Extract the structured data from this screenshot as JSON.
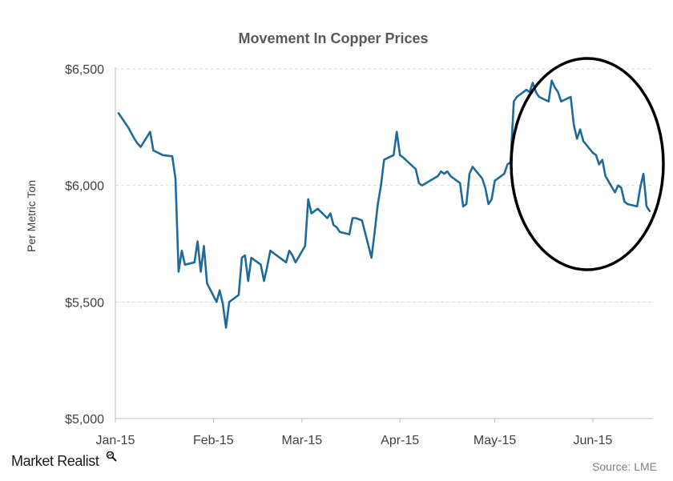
{
  "chart_data": {
    "type": "line",
    "title": "Movement In Copper Prices",
    "xlabel": "",
    "ylabel": "Per Metric Ton",
    "ylim": [
      5000,
      6500
    ],
    "ytick_values": [
      5000,
      5500,
      6000,
      6500
    ],
    "ytick_labels": [
      "$5,000",
      "$5,500",
      "$6,000",
      "$6,500"
    ],
    "xtick_labels": [
      "Jan-15",
      "Feb-15",
      "Mar-15",
      "Apr-15",
      "May-15",
      "Jun-15"
    ],
    "xtick_dates": [
      "2015-01-01",
      "2015-02-01",
      "2015-03-01",
      "2015-04-01",
      "2015-05-01",
      "2015-06-01"
    ],
    "xlim": [
      "2015-01-01",
      "2015-06-18"
    ],
    "grid": true,
    "annotation": "circled recent decline",
    "series": [
      {
        "color": "#1f6a9c",
        "points": [
          [
            "2015-01-02",
            6310
          ],
          [
            "2015-01-05",
            6250
          ],
          [
            "2015-01-07",
            6200
          ],
          [
            "2015-01-08",
            6180
          ],
          [
            "2015-01-09",
            6165
          ],
          [
            "2015-01-12",
            6230
          ],
          [
            "2015-01-13",
            6150
          ],
          [
            "2015-01-16",
            6130
          ],
          [
            "2015-01-19",
            6125
          ],
          [
            "2015-01-20",
            6030
          ],
          [
            "2015-01-21",
            5630
          ],
          [
            "2015-01-22",
            5720
          ],
          [
            "2015-01-23",
            5660
          ],
          [
            "2015-01-26",
            5670
          ],
          [
            "2015-01-27",
            5760
          ],
          [
            "2015-01-28",
            5630
          ],
          [
            "2015-01-29",
            5740
          ],
          [
            "2015-01-30",
            5580
          ],
          [
            "2015-02-02",
            5500
          ],
          [
            "2015-02-03",
            5550
          ],
          [
            "2015-02-04",
            5490
          ],
          [
            "2015-02-05",
            5390
          ],
          [
            "2015-02-06",
            5500
          ],
          [
            "2015-02-09",
            5530
          ],
          [
            "2015-02-10",
            5690
          ],
          [
            "2015-02-11",
            5700
          ],
          [
            "2015-02-12",
            5590
          ],
          [
            "2015-02-13",
            5690
          ],
          [
            "2015-02-16",
            5660
          ],
          [
            "2015-02-17",
            5590
          ],
          [
            "2015-02-18",
            5650
          ],
          [
            "2015-02-19",
            5720
          ],
          [
            "2015-02-20",
            5710
          ],
          [
            "2015-02-23",
            5680
          ],
          [
            "2015-02-24",
            5670
          ],
          [
            "2015-02-25",
            5720
          ],
          [
            "2015-02-26",
            5700
          ],
          [
            "2015-02-27",
            5670
          ],
          [
            "2015-03-02",
            5740
          ],
          [
            "2015-03-03",
            5940
          ],
          [
            "2015-03-04",
            5880
          ],
          [
            "2015-03-06",
            5900
          ],
          [
            "2015-03-09",
            5860
          ],
          [
            "2015-03-10",
            5880
          ],
          [
            "2015-03-11",
            5830
          ],
          [
            "2015-03-12",
            5820
          ],
          [
            "2015-03-13",
            5800
          ],
          [
            "2015-03-16",
            5790
          ],
          [
            "2015-03-17",
            5860
          ],
          [
            "2015-03-18",
            5860
          ],
          [
            "2015-03-20",
            5850
          ],
          [
            "2015-03-23",
            5690
          ],
          [
            "2015-03-24",
            5800
          ],
          [
            "2015-03-25",
            5920
          ],
          [
            "2015-03-26",
            6000
          ],
          [
            "2015-03-27",
            6110
          ],
          [
            "2015-03-30",
            6130
          ],
          [
            "2015-03-31",
            6230
          ],
          [
            "2015-04-01",
            6130
          ],
          [
            "2015-04-02",
            6120
          ],
          [
            "2015-04-06",
            6070
          ],
          [
            "2015-04-07",
            6010
          ],
          [
            "2015-04-08",
            6000
          ],
          [
            "2015-04-13",
            6040
          ],
          [
            "2015-04-14",
            6060
          ],
          [
            "2015-04-15",
            6050
          ],
          [
            "2015-04-16",
            6060
          ],
          [
            "2015-04-17",
            6040
          ],
          [
            "2015-04-20",
            6010
          ],
          [
            "2015-04-21",
            5910
          ],
          [
            "2015-04-22",
            5920
          ],
          [
            "2015-04-23",
            6050
          ],
          [
            "2015-04-24",
            6080
          ],
          [
            "2015-04-27",
            6030
          ],
          [
            "2015-04-28",
            5990
          ],
          [
            "2015-04-29",
            5920
          ],
          [
            "2015-04-30",
            5940
          ],
          [
            "2015-05-01",
            6020
          ],
          [
            "2015-05-04",
            6050
          ],
          [
            "2015-05-05",
            6090
          ],
          [
            "2015-05-06",
            6100
          ],
          [
            "2015-05-07",
            6360
          ],
          [
            "2015-05-08",
            6380
          ],
          [
            "2015-05-11",
            6410
          ],
          [
            "2015-05-12",
            6400
          ],
          [
            "2015-05-13",
            6440
          ],
          [
            "2015-05-14",
            6400
          ],
          [
            "2015-05-15",
            6380
          ],
          [
            "2015-05-18",
            6360
          ],
          [
            "2015-05-19",
            6450
          ],
          [
            "2015-05-20",
            6420
          ],
          [
            "2015-05-21",
            6400
          ],
          [
            "2015-05-22",
            6360
          ],
          [
            "2015-05-25",
            6380
          ],
          [
            "2015-05-26",
            6260
          ],
          [
            "2015-05-27",
            6200
          ],
          [
            "2015-05-28",
            6240
          ],
          [
            "2015-05-29",
            6190
          ],
          [
            "2015-06-01",
            6140
          ],
          [
            "2015-06-02",
            6130
          ],
          [
            "2015-06-03",
            6090
          ],
          [
            "2015-06-04",
            6110
          ],
          [
            "2015-06-05",
            6040
          ],
          [
            "2015-06-08",
            5970
          ],
          [
            "2015-06-09",
            6000
          ],
          [
            "2015-06-10",
            5990
          ],
          [
            "2015-06-11",
            5930
          ],
          [
            "2015-06-12",
            5920
          ],
          [
            "2015-06-15",
            5910
          ],
          [
            "2015-06-16",
            5990
          ],
          [
            "2015-06-17",
            6050
          ],
          [
            "2015-06-18",
            5910
          ],
          [
            "2015-06-19",
            5890
          ]
        ]
      }
    ]
  },
  "footer": {
    "brand": "Market Realist",
    "source": "Source: LME"
  }
}
